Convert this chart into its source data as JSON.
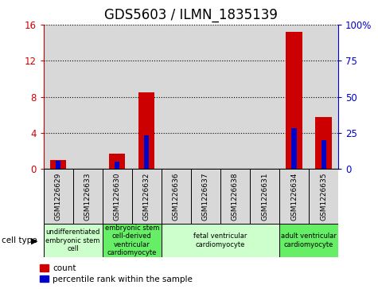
{
  "title": "GDS5603 / ILMN_1835139",
  "samples": [
    "GSM1226629",
    "GSM1226633",
    "GSM1226630",
    "GSM1226632",
    "GSM1226636",
    "GSM1226637",
    "GSM1226638",
    "GSM1226631",
    "GSM1226634",
    "GSM1226635"
  ],
  "counts": [
    1.0,
    0.0,
    1.7,
    8.5,
    0.0,
    0.0,
    0.0,
    0.0,
    15.2,
    5.8
  ],
  "percentiles": [
    5.5,
    0.0,
    5.0,
    23.5,
    0.0,
    0.0,
    0.0,
    0.0,
    28.5,
    20.0
  ],
  "ylim_left": [
    0,
    16
  ],
  "ylim_right": [
    0,
    100
  ],
  "yticks_left": [
    0,
    4,
    8,
    12,
    16
  ],
  "ytick_labels_left": [
    "0",
    "4",
    "8",
    "12",
    "16"
  ],
  "yticks_right": [
    0,
    25,
    50,
    75,
    100
  ],
  "ytick_labels_right": [
    "0",
    "25",
    "50",
    "75",
    "100%"
  ],
  "bar_color": "#cc0000",
  "pct_color": "#0000cc",
  "cell_type_label": "cell type",
  "cell_groups": [
    {
      "label": "undifferentiated\nembryonic stem\ncell",
      "start": 0,
      "end": 2,
      "color": "#ccffcc"
    },
    {
      "label": "embryonic stem\ncell-derived\nventricular\ncardiomyocyte",
      "start": 2,
      "end": 4,
      "color": "#66ee66"
    },
    {
      "label": "fetal ventricular\ncardiomyocyte",
      "start": 4,
      "end": 8,
      "color": "#ccffcc"
    },
    {
      "label": "adult ventricular\ncardiomyocyte",
      "start": 8,
      "end": 10,
      "color": "#66ee66"
    }
  ],
  "legend_count_label": "count",
  "legend_pct_label": "percentile rank within the sample",
  "bar_width": 0.55,
  "tick_color_left": "#cc0000",
  "tick_color_right": "#0000cc",
  "title_fontsize": 12,
  "tick_fontsize": 8.5,
  "sample_bg": "#d8d8d8"
}
